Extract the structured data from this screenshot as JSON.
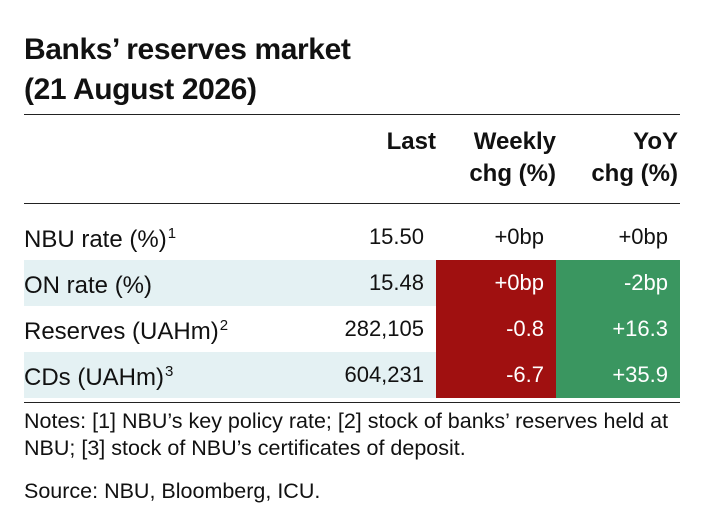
{
  "title": {
    "line1": "Banks’ reserves market",
    "line2": "(21 August 2026)"
  },
  "table": {
    "headers": {
      "last": "Last",
      "weekly_line1": "Weekly",
      "weekly_line2": "chg (%)",
      "yoy_line1": "YoY",
      "yoy_line2": "chg (%)"
    },
    "rows": [
      {
        "label": "NBU rate (%)",
        "note": "1",
        "last": "15.50",
        "weekly": "+0bp",
        "yoy": "+0bp"
      },
      {
        "label": "ON rate (%)",
        "note": "",
        "last": "15.48",
        "weekly": "+0bp",
        "yoy": "-2bp"
      },
      {
        "label": "Reserves (UAHm)",
        "note": "2",
        "last": "282,105",
        "weekly": "-0.8",
        "yoy": "+16.3"
      },
      {
        "label": "CDs (UAHm)",
        "note": "3",
        "last": "604,231",
        "weekly": "-6.7",
        "yoy": "+35.9"
      }
    ]
  },
  "colors": {
    "negative": "#a01010",
    "positive": "#3a9660",
    "row_shade": "#e4f1f3"
  },
  "notes": "Notes: [1] NBU’s key policy rate; [2] stock of banks’ reserves held at NBU; [3] stock of NBU’s certificates of deposit.",
  "source": "Source: NBU, Bloomberg, ICU."
}
